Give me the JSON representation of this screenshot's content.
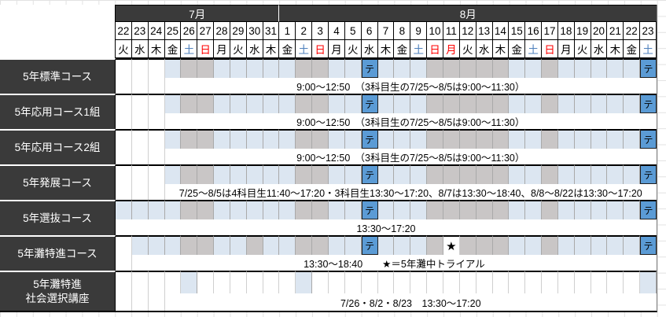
{
  "colors": {
    "header_bg": "#3a3a3a",
    "class_day": "#dce6f1",
    "off_day": "#c9c6c6",
    "test_day": "#5b9bd5",
    "saturday_text": "#4f81bd",
    "holiday_text": "#ff0000"
  },
  "legend": {
    "test_marker": "テ",
    "trial_marker": "★"
  },
  "months": [
    {
      "label": "7月",
      "span": 10
    },
    {
      "label": "8月",
      "span": 23
    }
  ],
  "day_columns": [
    {
      "date": "22",
      "dow": "火",
      "type": "weekday"
    },
    {
      "date": "23",
      "dow": "水",
      "type": "weekday"
    },
    {
      "date": "24",
      "dow": "木",
      "type": "weekday"
    },
    {
      "date": "25",
      "dow": "金",
      "type": "weekday"
    },
    {
      "date": "26",
      "dow": "土",
      "type": "saturday"
    },
    {
      "date": "27",
      "dow": "日",
      "type": "holiday"
    },
    {
      "date": "28",
      "dow": "月",
      "type": "weekday"
    },
    {
      "date": "29",
      "dow": "火",
      "type": "weekday"
    },
    {
      "date": "30",
      "dow": "水",
      "type": "weekday"
    },
    {
      "date": "31",
      "dow": "木",
      "type": "weekday"
    },
    {
      "date": "1",
      "dow": "金",
      "type": "weekday"
    },
    {
      "date": "2",
      "dow": "土",
      "type": "saturday"
    },
    {
      "date": "3",
      "dow": "日",
      "type": "holiday"
    },
    {
      "date": "4",
      "dow": "月",
      "type": "weekday"
    },
    {
      "date": "5",
      "dow": "火",
      "type": "weekday"
    },
    {
      "date": "6",
      "dow": "水",
      "type": "weekday"
    },
    {
      "date": "7",
      "dow": "木",
      "type": "weekday"
    },
    {
      "date": "8",
      "dow": "金",
      "type": "weekday"
    },
    {
      "date": "9",
      "dow": "土",
      "type": "saturday"
    },
    {
      "date": "10",
      "dow": "日",
      "type": "holiday"
    },
    {
      "date": "11",
      "dow": "月",
      "type": "holiday"
    },
    {
      "date": "12",
      "dow": "火",
      "type": "weekday"
    },
    {
      "date": "13",
      "dow": "水",
      "type": "weekday"
    },
    {
      "date": "14",
      "dow": "木",
      "type": "weekday"
    },
    {
      "date": "15",
      "dow": "金",
      "type": "weekday"
    },
    {
      "date": "16",
      "dow": "土",
      "type": "saturday"
    },
    {
      "date": "17",
      "dow": "日",
      "type": "holiday"
    },
    {
      "date": "18",
      "dow": "月",
      "type": "weekday"
    },
    {
      "date": "19",
      "dow": "火",
      "type": "weekday"
    },
    {
      "date": "20",
      "dow": "水",
      "type": "weekday"
    },
    {
      "date": "21",
      "dow": "木",
      "type": "weekday"
    },
    {
      "date": "22",
      "dow": "金",
      "type": "weekday"
    },
    {
      "date": "23",
      "dow": "土",
      "type": "saturday"
    }
  ],
  "courses": [
    {
      "name_lines": [
        "5年標準コース"
      ],
      "cells": "wwwbggbbbbbggbbtbbbgggggbbgbbbbbt",
      "lead": 3,
      "note": "9:00～12:50　（3科目生の7/25～8/5は9:00～11:30）"
    },
    {
      "name_lines": [
        "5年応用コース1組"
      ],
      "cells": "wwwbggbbbbbggbbtbbbgggggbbgbbbbbt",
      "lead": 3,
      "note": "9:00～12:50　（3科目生の7/25～8/5は9:00～11:30）"
    },
    {
      "name_lines": [
        "5年応用コース2組"
      ],
      "cells": "wwwbggbbbbbggbbtbbbgggggbbgbbbbbt",
      "lead": 3,
      "note": "9:00～12:50　（3科目生の7/25～8/5は9:00～11:30）"
    },
    {
      "name_lines": [
        "5年発展コース"
      ],
      "cells": "wwwbggbbbbbggbbtbbbgggggbbgbbbbbt",
      "lead": 3,
      "note": "7/25～8/5は4科目生11:40～17:20・3科目生13:30～17:20、8/7は13:30～18:40、8/8～8/22は13:30～17:20"
    },
    {
      "name_lines": [
        "5年選抜コース"
      ],
      "cells": "bbbbggbbbbbggbbtbbbgggggbbgbbbbbt",
      "lead": 0,
      "note": "13:30～17:20"
    },
    {
      "name_lines": [
        "5年灘特進コース"
      ],
      "cells": "wbbbggbbgbbggbbtbbbgsgggbbgbbbbbt",
      "lead": 1,
      "note": "13:30～18:40　　★＝5年灘中トライアル"
    },
    {
      "name_lines": [
        "5年灘特進",
        "社会選択講座"
      ],
      "cells": "wwwwbwwwwwwbwwwwwwwwwwwwwwwwwwwwb",
      "lead": 3,
      "note": "7/26・8/2・8/23　13:30～17:20"
    }
  ]
}
